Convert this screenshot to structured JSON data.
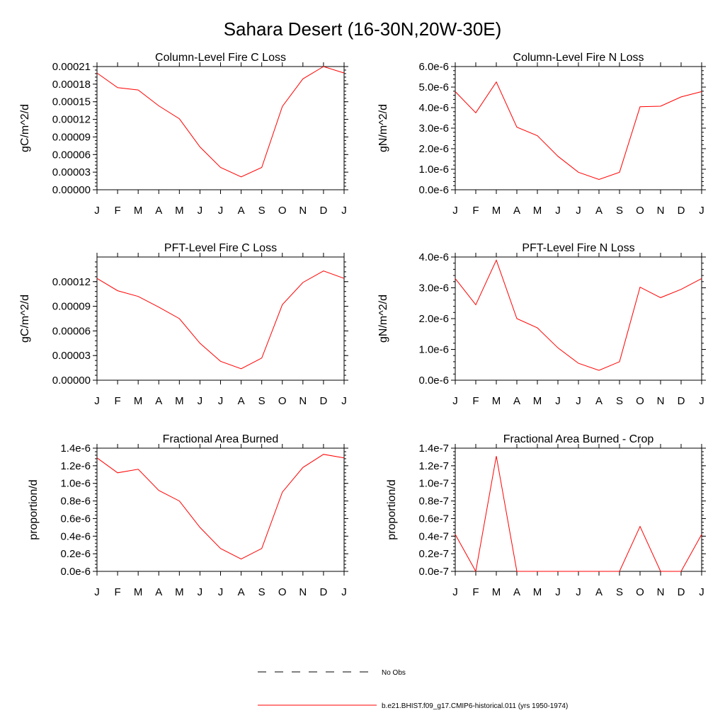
{
  "title": "Sahara Desert (16-30N,20W-30E)",
  "month_labels": [
    "J",
    "F",
    "M",
    "A",
    "M",
    "J",
    "J",
    "A",
    "S",
    "O",
    "N",
    "D",
    "J"
  ],
  "legend": [
    {
      "label": "No Obs",
      "style": "dashed",
      "color": "#000000"
    },
    {
      "label": "b.e21.BHIST.f09_g17.CMIP6-historical.011 (yrs 1950-1974)",
      "style": "solid",
      "color": "#ff0000"
    }
  ],
  "chart_data": [
    {
      "type": "line",
      "title": "Column-Level Fire C Loss",
      "ylabel": "gC/m^2/d",
      "ylim": [
        0,
        0.00021
      ],
      "yticks": [
        "0.00000",
        "0.00003",
        "0.00006",
        "0.00009",
        "0.00012",
        "0.00015",
        "0.00018",
        "0.00021"
      ],
      "x": [
        "J",
        "F",
        "M",
        "A",
        "M",
        "J",
        "J",
        "A",
        "S",
        "O",
        "N",
        "D",
        "J"
      ],
      "series": [
        {
          "color": "#ff0000",
          "values": [
            0.000199,
            0.000174,
            0.00017,
            0.000143,
            0.000121,
            7.3e-05,
            3.8e-05,
            2.2e-05,
            3.8e-05,
            0.000142,
            0.000189,
            0.00021,
            0.000199
          ]
        }
      ]
    },
    {
      "type": "line",
      "title": "Column-Level Fire N Loss",
      "ylabel": "gN/m^2/d",
      "ylim": [
        0,
        6e-06
      ],
      "yticks": [
        "0.0e-6",
        "1.0e-6",
        "2.0e-6",
        "3.0e-6",
        "4.0e-6",
        "5.0e-6",
        "6.0e-6"
      ],
      "x": [
        "J",
        "F",
        "M",
        "A",
        "M",
        "J",
        "J",
        "A",
        "S",
        "O",
        "N",
        "D",
        "J"
      ],
      "series": [
        {
          "color": "#ff0000",
          "values": [
            4.78e-06,
            3.75e-06,
            5.25e-06,
            3.05e-06,
            2.63e-06,
            1.63e-06,
            8.5e-07,
            5e-07,
            8.5e-07,
            4.04e-06,
            4.07e-06,
            4.52e-06,
            4.78e-06
          ]
        }
      ]
    },
    {
      "type": "line",
      "title": "PFT-Level Fire C Loss",
      "ylabel": "gC/m^2/d",
      "ylim": [
        0,
        0.00015
      ],
      "yticks": [
        "0.00000",
        "0.00003",
        "0.00006",
        "0.00009",
        "0.00012"
      ],
      "x": [
        "J",
        "F",
        "M",
        "A",
        "M",
        "J",
        "J",
        "A",
        "S",
        "O",
        "N",
        "D",
        "J"
      ],
      "series": [
        {
          "color": "#ff0000",
          "values": [
            0.000124,
            0.000109,
            0.000102,
            8.9e-05,
            7.5e-05,
            4.5e-05,
            2.3e-05,
            1.4e-05,
            2.7e-05,
            9.2e-05,
            0.000119,
            0.000133,
            0.000124
          ]
        }
      ]
    },
    {
      "type": "line",
      "title": "PFT-Level Fire N Loss",
      "ylabel": "gN/m^2/d",
      "ylim": [
        0,
        4e-06
      ],
      "yticks": [
        "0.0e-6",
        "1.0e-6",
        "2.0e-6",
        "3.0e-6",
        "4.0e-6"
      ],
      "x": [
        "J",
        "F",
        "M",
        "A",
        "M",
        "J",
        "J",
        "A",
        "S",
        "O",
        "N",
        "D",
        "J"
      ],
      "series": [
        {
          "color": "#ff0000",
          "values": [
            3.3e-06,
            2.45e-06,
            3.9e-06,
            2e-06,
            1.7e-06,
            1.05e-06,
            5.5e-07,
            3.2e-07,
            6e-07,
            3.02e-06,
            2.68e-06,
            2.95e-06,
            3.3e-06
          ]
        }
      ]
    },
    {
      "type": "line",
      "title": "Fractional Area Burned",
      "ylabel": "proportion/d",
      "ylim": [
        0,
        1.4e-06
      ],
      "yticks": [
        "0.0e-6",
        "0.2e-6",
        "0.4e-6",
        "0.6e-6",
        "0.8e-6",
        "1.0e-6",
        "1.2e-6",
        "1.4e-6"
      ],
      "x": [
        "J",
        "F",
        "M",
        "A",
        "M",
        "J",
        "J",
        "A",
        "S",
        "O",
        "N",
        "D",
        "J"
      ],
      "series": [
        {
          "color": "#ff0000",
          "values": [
            1.29e-06,
            1.12e-06,
            1.16e-06,
            9.2e-07,
            8e-07,
            5e-07,
            2.6e-07,
            1.4e-07,
            2.6e-07,
            9e-07,
            1.18e-06,
            1.33e-06,
            1.29e-06
          ]
        }
      ]
    },
    {
      "type": "line",
      "title": "Fractional Area Burned - Crop",
      "ylabel": "proportion/d",
      "ylim": [
        0,
        1.4e-07
      ],
      "yticks": [
        "0.0e-7",
        "0.2e-7",
        "0.4e-7",
        "0.6e-7",
        "0.8e-7",
        "1.0e-7",
        "1.2e-7",
        "1.4e-7"
      ],
      "x": [
        "J",
        "F",
        "M",
        "A",
        "M",
        "J",
        "J",
        "A",
        "S",
        "O",
        "N",
        "D",
        "J"
      ],
      "series": [
        {
          "color": "#ff0000",
          "values": [
            4.2e-08,
            0.0,
            1.31e-07,
            0.0,
            0.0,
            0.0,
            0.0,
            0.0,
            0.0,
            5.1e-08,
            0.0,
            0.0,
            4.2e-08
          ]
        }
      ]
    }
  ]
}
